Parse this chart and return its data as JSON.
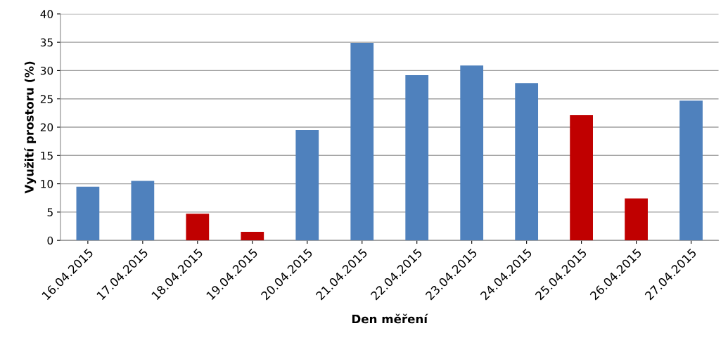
{
  "chart_data": {
    "type": "bar",
    "xlabel": "Den měření",
    "ylabel": "Využití prostoru (%)",
    "categories": [
      "16.04.2015",
      "17.04.2015",
      "18.04.2015",
      "19.04.2015",
      "20.04.2015",
      "21.04.2015",
      "22.04.2015",
      "23.04.2015",
      "24.04.2015",
      "25.04.2015",
      "26.04.2015",
      "27.04.2015"
    ],
    "values": [
      9.5,
      10.5,
      4.7,
      1.5,
      19.5,
      34.9,
      29.2,
      30.9,
      27.8,
      22.1,
      7.4,
      24.7
    ],
    "colors": [
      "#4f81bd",
      "#4f81bd",
      "#c00000",
      "#c00000",
      "#4f81bd",
      "#4f81bd",
      "#4f81bd",
      "#4f81bd",
      "#4f81bd",
      "#c00000",
      "#c00000",
      "#4f81bd"
    ],
    "ylim": [
      0,
      40
    ],
    "yticks": [
      0,
      5,
      10,
      15,
      20,
      25,
      30,
      35,
      40
    ],
    "grid": "y",
    "legend": false
  }
}
